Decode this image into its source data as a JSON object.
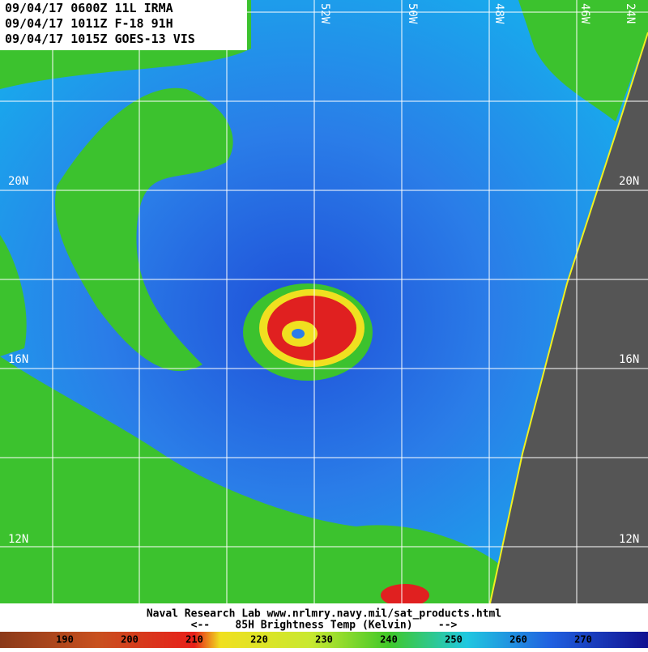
{
  "header": {
    "lines": [
      "09/04/17 0600Z 11L IRMA",
      "09/04/17 1011Z F-18 91H",
      "09/04/17 1015Z GOES-13 VIS"
    ]
  },
  "longitude_labels": [
    "52W",
    "50W",
    "48W",
    "46W",
    "24N"
  ],
  "latitude_labels": [
    "20N",
    "16N",
    "12N"
  ],
  "footer": {
    "credit": "Naval Research Lab  www.nrlmry.navy.mil/sat_products.html",
    "scale_title": "<--    85H Brightness Temp (Kelvin)    -->"
  },
  "colorbar": {
    "labels": [
      190,
      200,
      210,
      220,
      230,
      240,
      250,
      260,
      270
    ]
  }
}
